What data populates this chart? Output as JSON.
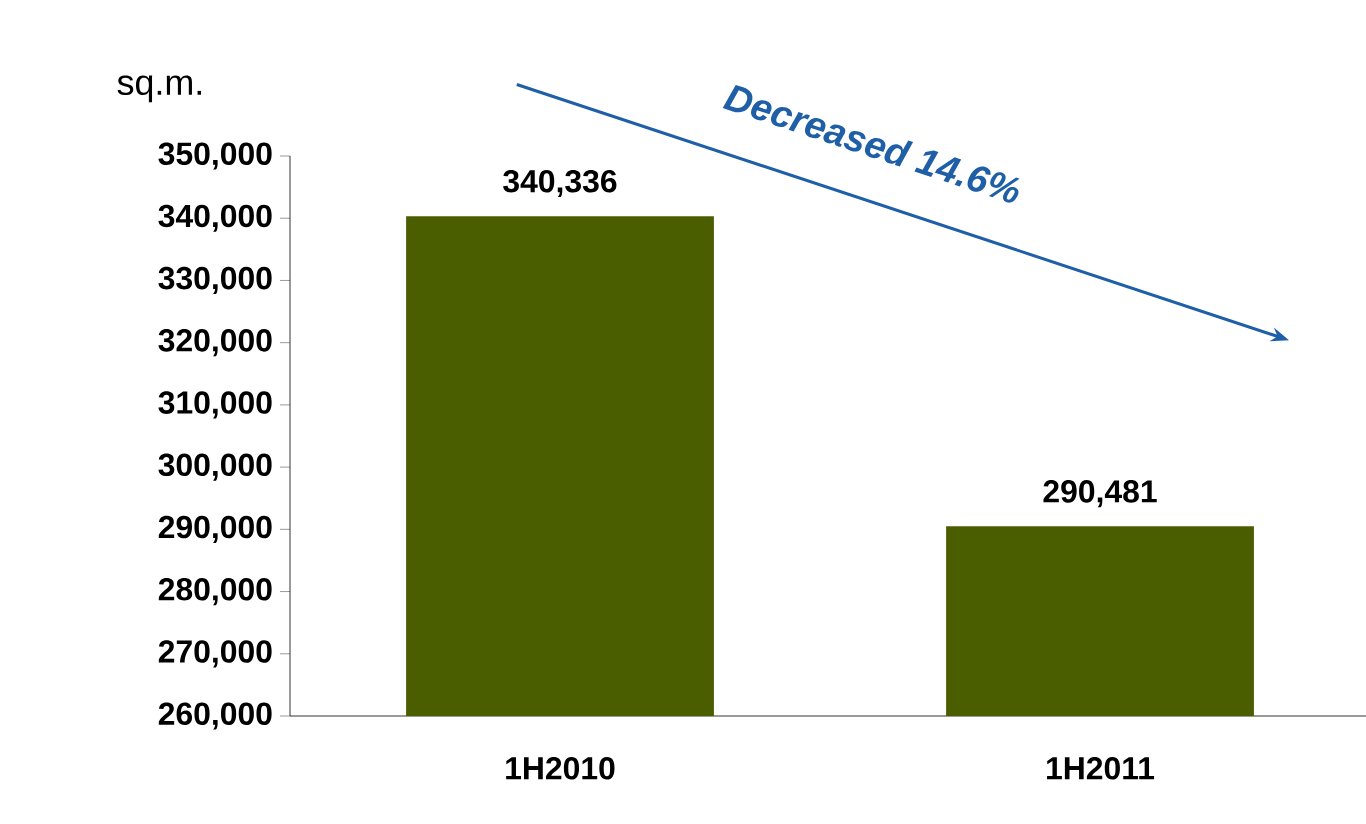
{
  "chart_data": {
    "type": "bar",
    "ylabel": "sq.m.",
    "categories": [
      "1H2010",
      "1H2011"
    ],
    "values": [
      340336,
      290481
    ],
    "color": "#4a5e00",
    "value_labels": [
      "340,336",
      "290,481"
    ],
    "ylim": [
      260000,
      350000
    ],
    "yticks": [
      {
        "value": 260000,
        "label": "260,000"
      },
      {
        "value": 270000,
        "label": "270,000"
      },
      {
        "value": 280000,
        "label": "280,000"
      },
      {
        "value": 290000,
        "label": "290,000"
      },
      {
        "value": 300000,
        "label": "300,000"
      },
      {
        "value": 310000,
        "label": "310,000"
      },
      {
        "value": 320000,
        "label": "320,000"
      },
      {
        "value": 330000,
        "label": "330,000"
      },
      {
        "value": 340000,
        "label": "340,000"
      },
      {
        "value": 350000,
        "label": "350,000"
      }
    ],
    "annotations": [
      "Decreased 14.6%"
    ]
  }
}
